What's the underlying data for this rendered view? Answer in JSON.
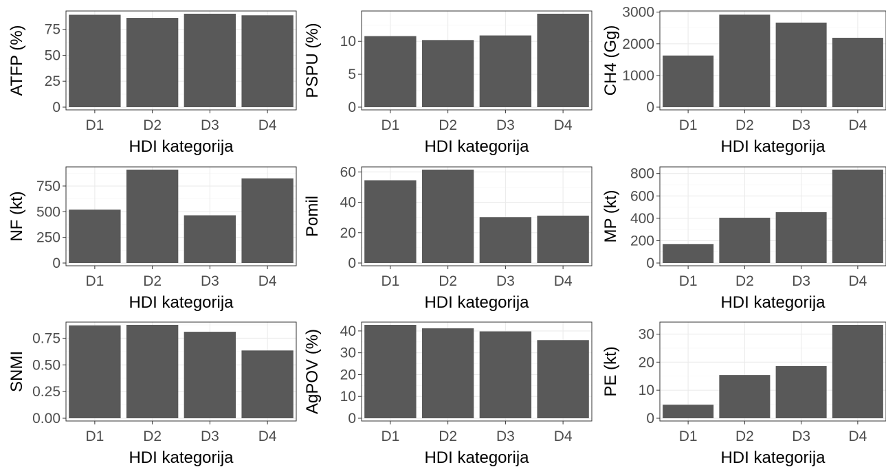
{
  "chart_data": [
    {
      "type": "bar",
      "xlabel": "HDI kategorija",
      "ylabel": "ATFP (%)",
      "categories": [
        "D1",
        "D2",
        "D3",
        "D4"
      ],
      "values": [
        89,
        86,
        90,
        88.5
      ],
      "ylim": [
        0,
        90
      ],
      "yticks": [
        0,
        25,
        50,
        75
      ],
      "ytick_labels": [
        "0",
        "25",
        "50",
        "75"
      ],
      "grid": true,
      "bar_color": "#595959"
    },
    {
      "type": "bar",
      "xlabel": "HDI kategorija",
      "ylabel": "PSPU (%)",
      "categories": [
        "D1",
        "D2",
        "D3",
        "D4"
      ],
      "values": [
        10.8,
        10.2,
        10.9,
        14.2
      ],
      "ylim": [
        0,
        14.2
      ],
      "yticks": [
        0,
        5,
        10
      ],
      "ytick_labels": [
        "0",
        "5",
        "10"
      ],
      "grid": true,
      "bar_color": "#595959"
    },
    {
      "type": "bar",
      "xlabel": "HDI kategorija",
      "ylabel": "CH4 (Gg)",
      "categories": [
        "D1",
        "D2",
        "D3",
        "D4"
      ],
      "values": [
        1630,
        2920,
        2670,
        2190
      ],
      "ylim": [
        0,
        2950
      ],
      "yticks": [
        0,
        1000,
        2000,
        3000
      ],
      "ytick_labels": [
        "0",
        "1000",
        "2000",
        "3000"
      ],
      "grid": true,
      "bar_color": "#595959"
    },
    {
      "type": "bar",
      "xlabel": "HDI kategorija",
      "ylabel": "NF (kt)",
      "categories": [
        "D1",
        "D2",
        "D3",
        "D4"
      ],
      "values": [
        520,
        910,
        465,
        825
      ],
      "ylim": [
        0,
        910
      ],
      "yticks": [
        0,
        250,
        500,
        750
      ],
      "ytick_labels": [
        "0",
        "250",
        "500",
        "750"
      ],
      "grid": true,
      "bar_color": "#595959"
    },
    {
      "type": "bar",
      "xlabel": "HDI kategorija",
      "ylabel": "Pomil",
      "categories": [
        "D1",
        "D2",
        "D3",
        "D4"
      ],
      "values": [
        54.5,
        61.5,
        30.2,
        31.2
      ],
      "ylim": [
        0,
        61.5
      ],
      "yticks": [
        0,
        20,
        40,
        60
      ],
      "ytick_labels": [
        "0",
        "20",
        "40",
        "60"
      ],
      "grid": true,
      "bar_color": "#595959"
    },
    {
      "type": "bar",
      "xlabel": "HDI kategorija",
      "ylabel": "MP (kt)",
      "categories": [
        "D1",
        "D2",
        "D3",
        "D4"
      ],
      "values": [
        170,
        405,
        455,
        835
      ],
      "ylim": [
        0,
        835
      ],
      "yticks": [
        0,
        200,
        400,
        600,
        800
      ],
      "ytick_labels": [
        "0",
        "200",
        "400",
        "600",
        "800"
      ],
      "grid": true,
      "bar_color": "#595959"
    },
    {
      "type": "bar",
      "xlabel": "HDI kategorija",
      "ylabel": "SNMI",
      "categories": [
        "D1",
        "D2",
        "D3",
        "D4"
      ],
      "values": [
        0.87,
        0.875,
        0.81,
        0.635
      ],
      "ylim": [
        0,
        0.875
      ],
      "yticks": [
        0,
        0.25,
        0.5,
        0.75
      ],
      "ytick_labels": [
        "0.00",
        "0.25",
        "0.50",
        "0.75"
      ],
      "grid": true,
      "bar_color": "#595959"
    },
    {
      "type": "bar",
      "xlabel": "HDI kategorija",
      "ylabel": "AgPOV (%)",
      "categories": [
        "D1",
        "D2",
        "D3",
        "D4"
      ],
      "values": [
        42.8,
        41.2,
        39.8,
        35.8
      ],
      "ylim": [
        0,
        42.8
      ],
      "yticks": [
        0,
        10,
        20,
        30,
        40
      ],
      "ytick_labels": [
        "0",
        "10",
        "20",
        "30",
        "40"
      ],
      "grid": true,
      "bar_color": "#595959"
    },
    {
      "type": "bar",
      "xlabel": "HDI kategorija",
      "ylabel": "PE (kt)",
      "categories": [
        "D1",
        "D2",
        "D3",
        "D4"
      ],
      "values": [
        4.8,
        15.4,
        18.6,
        33.3
      ],
      "ylim": [
        0,
        33.3
      ],
      "yticks": [
        0,
        10,
        20,
        30
      ],
      "ytick_labels": [
        "0",
        "10",
        "20",
        "30"
      ],
      "grid": true,
      "bar_color": "#595959"
    }
  ]
}
